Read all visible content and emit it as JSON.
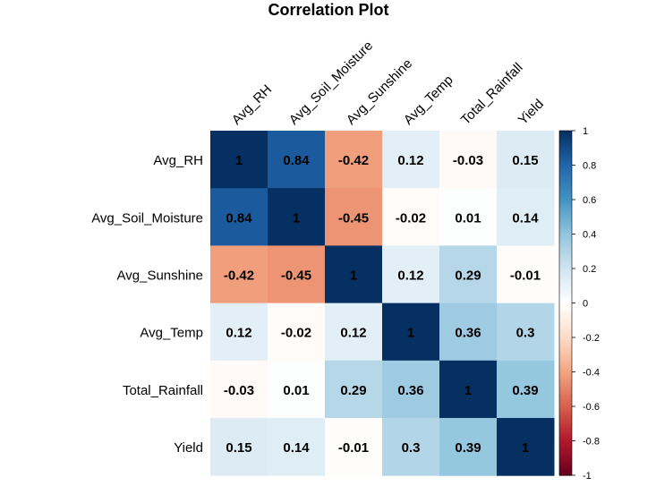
{
  "chart_data": {
    "type": "heatmap",
    "title": "Correlation Plot",
    "variables": [
      "Avg_RH",
      "Avg_Soil_Moisture",
      "Avg_Sunshine",
      "Avg_Temp",
      "Total_Rainfall",
      "Yield"
    ],
    "matrix": [
      [
        1,
        0.84,
        -0.42,
        0.12,
        -0.03,
        0.15
      ],
      [
        0.84,
        1,
        -0.45,
        -0.02,
        0.01,
        0.14
      ],
      [
        -0.42,
        -0.45,
        1,
        0.12,
        0.29,
        -0.01
      ],
      [
        0.12,
        -0.02,
        0.12,
        1,
        0.36,
        0.3
      ],
      [
        -0.03,
        0.01,
        0.29,
        0.36,
        1,
        0.39
      ],
      [
        0.15,
        0.14,
        -0.01,
        0.3,
        0.39,
        1
      ]
    ],
    "cell_labels": [
      [
        "1",
        "0.84",
        "-0.42",
        "0.12",
        "-0.03",
        "0.15"
      ],
      [
        "0.84",
        "1",
        "-0.45",
        "-0.02",
        "0.01",
        "0.14"
      ],
      [
        "-0.42",
        "-0.45",
        "1",
        "0.12",
        "0.29",
        "-0.01"
      ],
      [
        "0.12",
        "-0.02",
        "0.12",
        "1",
        "0.36",
        "0.3"
      ],
      [
        "-0.03",
        "0.01",
        "0.29",
        "0.36",
        "1",
        "0.39"
      ],
      [
        "0.15",
        "0.14",
        "-0.01",
        "0.3",
        "0.39",
        "1"
      ]
    ],
    "color_range": [
      -1,
      1
    ],
    "colorbar_ticks": [
      1,
      0.8,
      0.6,
      0.4,
      0.2,
      0,
      -0.2,
      -0.4,
      -0.6,
      -0.8,
      -1
    ],
    "colorbar_tick_labels": [
      "1",
      "0.8",
      "0.6",
      "0.4",
      "0.2",
      "0",
      "-0.2",
      "-0.4",
      "-0.6",
      "-0.8",
      "-1"
    ],
    "legend": "right",
    "palette": [
      "#67001F",
      "#B2182B",
      "#D6604D",
      "#F4A582",
      "#FDDBC7",
      "#FFFFFF",
      "#D1E5F0",
      "#92C5DE",
      "#4393C3",
      "#2166AC",
      "#053061"
    ]
  }
}
